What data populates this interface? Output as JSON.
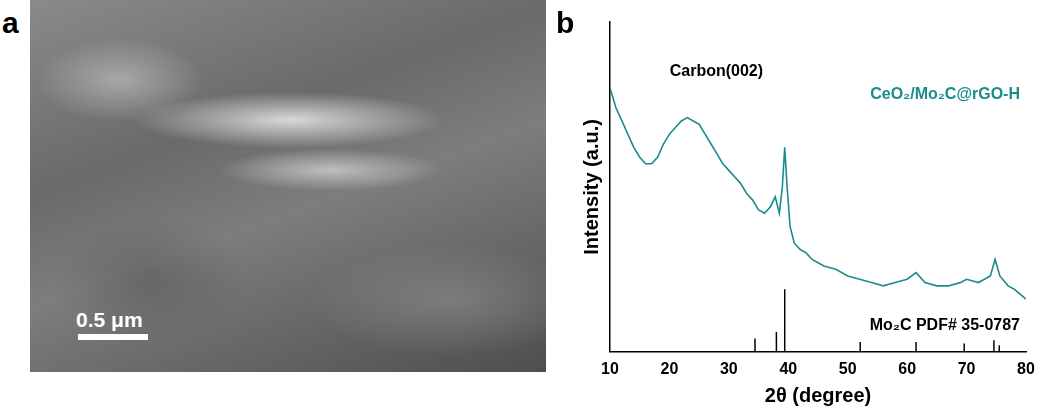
{
  "image_panel": {
    "letter": "a",
    "scale_bar": "0.5 μm"
  },
  "chart_panel": {
    "letter": "b"
  },
  "chart_data": {
    "type": "line",
    "x_label": "2θ (degree)",
    "y_label": "Intensity (a.u.)",
    "xlim": [
      10,
      80
    ],
    "xticks": [
      10,
      20,
      30,
      40,
      50,
      60,
      70,
      80
    ],
    "ylim": [
      0,
      100
    ],
    "yticks": [],
    "tick_labels": "x",
    "grid": false,
    "annotations": [
      {
        "text": "Carbon(002)",
        "x": 27.9,
        "y": 85
      }
    ],
    "series": [
      {
        "name": "CeO₂/Mo₂C@rGO-H",
        "type": "line",
        "color": "#1a8c8c",
        "x": [
          10,
          11,
          12,
          13,
          14,
          15,
          16,
          17,
          18,
          19,
          20,
          21,
          22,
          23,
          24,
          25,
          26,
          27,
          28,
          29,
          30,
          31,
          32,
          33,
          34,
          35,
          36,
          37,
          37.8,
          38.5,
          39,
          39.4,
          39.8,
          40.3,
          41,
          42,
          43,
          44,
          45,
          46,
          48,
          50,
          52,
          54,
          56,
          58,
          60,
          61.5,
          63,
          65,
          67,
          69,
          70,
          72,
          74,
          74.8,
          75.6,
          77,
          78,
          80
        ],
        "values": [
          80,
          74,
          70,
          66,
          62,
          59,
          57,
          57,
          59,
          63,
          66,
          68,
          70,
          71,
          70,
          69,
          66,
          63,
          60,
          57,
          55,
          53,
          51,
          48,
          46,
          43,
          42,
          44,
          47,
          42,
          50,
          62,
          50,
          38,
          33,
          31,
          30,
          28,
          27,
          26,
          25,
          23,
          22,
          21,
          20,
          21,
          22,
          24,
          21,
          20,
          20,
          21,
          22,
          21,
          23,
          28,
          23,
          20,
          19,
          16
        ]
      },
      {
        "name": "Mo₂C PDF# 35-0787",
        "type": "bar",
        "color": "#000000",
        "x": [
          34.4,
          38.0,
          39.4,
          52.1,
          61.5,
          69.6,
          74.6,
          75.5
        ],
        "values": [
          4,
          6,
          19,
          3,
          3,
          2.5,
          3.5,
          2
        ]
      }
    ]
  }
}
